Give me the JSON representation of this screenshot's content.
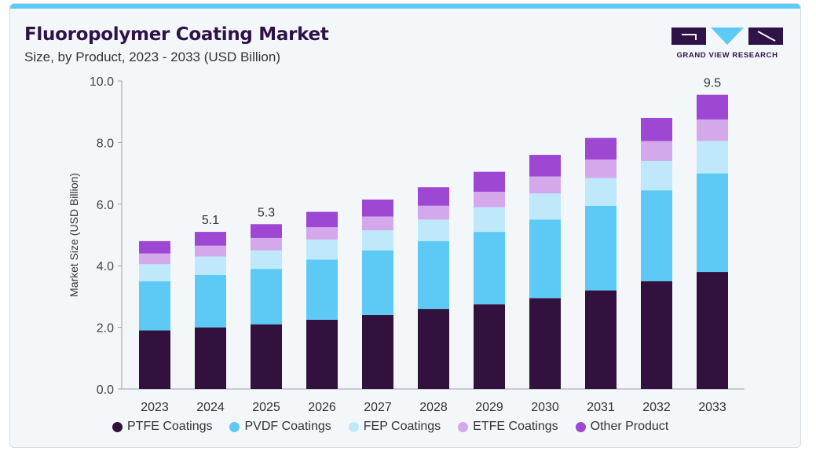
{
  "header": {
    "title": "Fluoropolymer Coating Market",
    "subtitle": "Size, by Product, 2023 - 2033 (USD Billion)"
  },
  "logo": {
    "text": "GRAND VIEW RESEARCH",
    "icon": "grand-view-research-logo",
    "colors": {
      "dark": "#2f1248",
      "accent": "#5ccaf4"
    }
  },
  "chart_data": {
    "type": "bar",
    "stacked": true,
    "title": "Fluoropolymer Coating Market",
    "subtitle": "Size, by Product, 2023 - 2033 (USD Billion)",
    "xlabel": "",
    "ylabel": "Market Size (USD Billion)",
    "ylim": [
      0,
      10
    ],
    "yticks": [
      "0.0",
      "2.0",
      "4.0",
      "6.0",
      "8.0",
      "10.0"
    ],
    "grid": false,
    "legend_position": "bottom",
    "categories": [
      "2023",
      "2024",
      "2025",
      "2026",
      "2027",
      "2028",
      "2029",
      "2030",
      "2031",
      "2032",
      "2033"
    ],
    "series": [
      {
        "name": "PTFE Coatings",
        "color": "#33113f",
        "values": [
          1.9,
          2.0,
          2.1,
          2.25,
          2.4,
          2.6,
          2.75,
          2.95,
          3.2,
          3.5,
          3.8
        ]
      },
      {
        "name": "PVDF Coatings",
        "color": "#5ccaf4",
        "values": [
          1.6,
          1.7,
          1.8,
          1.95,
          2.1,
          2.2,
          2.35,
          2.55,
          2.75,
          2.95,
          3.2
        ]
      },
      {
        "name": "FEP Coatings",
        "color": "#bfe9fb",
        "values": [
          0.55,
          0.6,
          0.6,
          0.65,
          0.65,
          0.7,
          0.8,
          0.85,
          0.9,
          0.95,
          1.05
        ]
      },
      {
        "name": "ETFE Coatings",
        "color": "#d4a9ec",
        "values": [
          0.35,
          0.35,
          0.4,
          0.4,
          0.45,
          0.45,
          0.5,
          0.55,
          0.6,
          0.65,
          0.7
        ]
      },
      {
        "name": "Other Product",
        "color": "#9d47d3",
        "values": [
          0.4,
          0.45,
          0.45,
          0.5,
          0.55,
          0.6,
          0.65,
          0.7,
          0.7,
          0.75,
          0.8
        ]
      }
    ],
    "data_labels": [
      {
        "category": "2024",
        "label": "5.1"
      },
      {
        "category": "2025",
        "label": "5.3"
      },
      {
        "category": "2033",
        "label": "9.5"
      }
    ]
  }
}
